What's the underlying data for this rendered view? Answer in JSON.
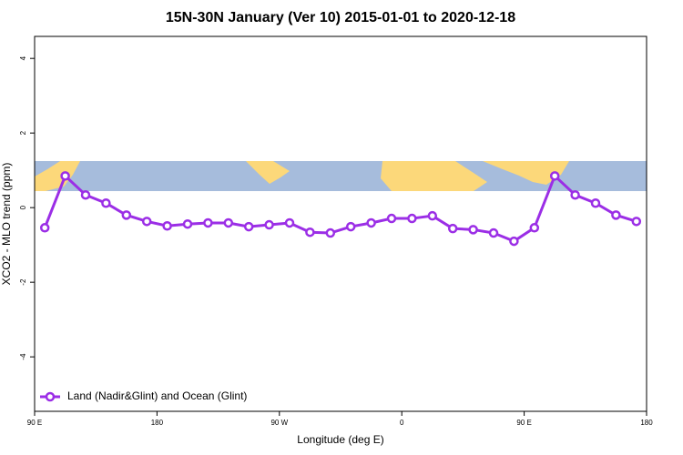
{
  "chart_data": {
    "type": "line",
    "title": "15N-30N January (Ver 10)   2015-01-01 to 2020-12-18",
    "x_label": "Longitude (deg E)",
    "y_label": "XCO2 - MLO trend (ppm)",
    "x": [
      97.5,
      112.5,
      127.5,
      142.5,
      157.5,
      172.5,
      187.5,
      202.5,
      217.5,
      232.5,
      247.5,
      262.5,
      277.5,
      292.5,
      307.5,
      322.5,
      337.5,
      352.5,
      367.5,
      382.5,
      397.5,
      412.5,
      427.5,
      442.5,
      457.5,
      472.5,
      487.5,
      502.5,
      517.5,
      532.5
    ],
    "series": [
      {
        "name": "Land (Nadir&Glint) and Ocean (Glint)",
        "color": "#9b2ee6",
        "values": [
          -0.54,
          0.85,
          0.34,
          0.12,
          -0.2,
          -0.37,
          -0.49,
          -0.44,
          -0.41,
          -0.41,
          -0.51,
          -0.46,
          -0.41,
          -0.66,
          -0.68,
          -0.51,
          -0.41,
          -0.29,
          -0.29,
          -0.22,
          -0.56,
          -0.59,
          -0.68,
          -0.9,
          -0.54,
          0.85,
          0.34,
          0.12,
          -0.2,
          -0.37
        ]
      }
    ],
    "xlim": [
      90,
      540
    ],
    "xticks": [
      {
        "value": 90,
        "label": "90 E"
      },
      180,
      {
        "value": 270,
        "label": "90 W"
      },
      {
        "value": 360,
        "label": "0"
      },
      {
        "value": 450,
        "label": "90 E"
      },
      {
        "value": 540,
        "label": "180"
      }
    ],
    "ylim": [
      -5.46,
      4.59
    ],
    "yticks": [
      -4,
      -2,
      0,
      2,
      4
    ],
    "legend": "bottom-left"
  }
}
